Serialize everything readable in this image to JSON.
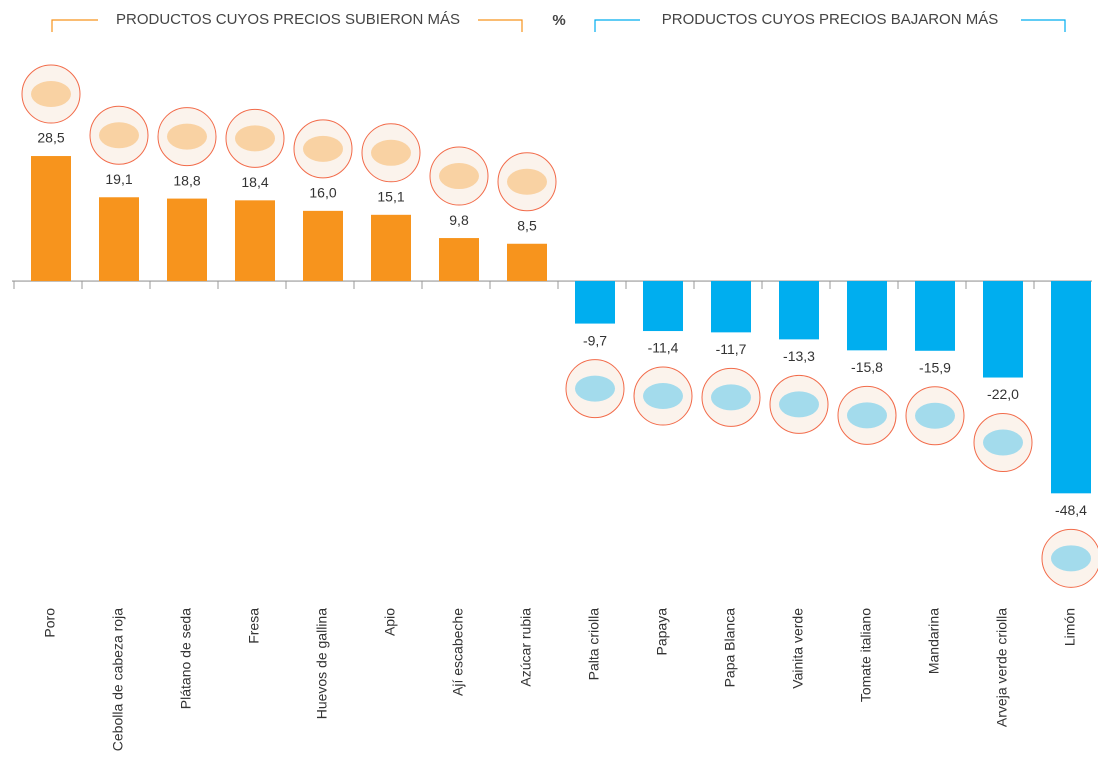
{
  "chart_data": {
    "type": "bar",
    "header_left": "PRODUCTOS CUYOS PRECIOS SUBIERON MÁS",
    "unit": "%",
    "header_right": "PRODUCTOS CUYOS PRECIOS BAJARON MÁS",
    "categories": [
      "Poro",
      "Cebolla de cabeza roja",
      "Plátano de seda",
      "Fresa",
      "Huevos de gallina",
      "Apio",
      "Ají escabeche",
      "Azúcar rubia",
      "Palta criolla",
      "Papaya",
      "Papa Blanca",
      "Vainita verde",
      "Tomate italiano",
      "Mandarina",
      "Arveja verde criolla",
      "Limón"
    ],
    "values": [
      28.5,
      19.1,
      18.8,
      18.4,
      16.0,
      15.1,
      9.8,
      8.5,
      -9.7,
      -11.4,
      -11.7,
      -13.3,
      -15.8,
      -15.9,
      -22.0,
      -48.4
    ],
    "value_labels": [
      "28,5",
      "19,1",
      "18,8",
      "18,4",
      "16,0",
      "15,1",
      "9,8",
      "8,5",
      "-9,7",
      "-11,4",
      "-11,7",
      "-13,3",
      "-15,8",
      "-15,9",
      "-22,0",
      "-48,4"
    ],
    "colors": [
      "#f7941d",
      "#f7941d",
      "#f7941d",
      "#f7941d",
      "#f7941d",
      "#f7941d",
      "#f7941d",
      "#f7941d",
      "#00aeef",
      "#00aeef",
      "#00aeef",
      "#00aeef",
      "#00aeef",
      "#00aeef",
      "#00aeef",
      "#00aeef"
    ],
    "ylim": [
      -60,
      40
    ]
  }
}
